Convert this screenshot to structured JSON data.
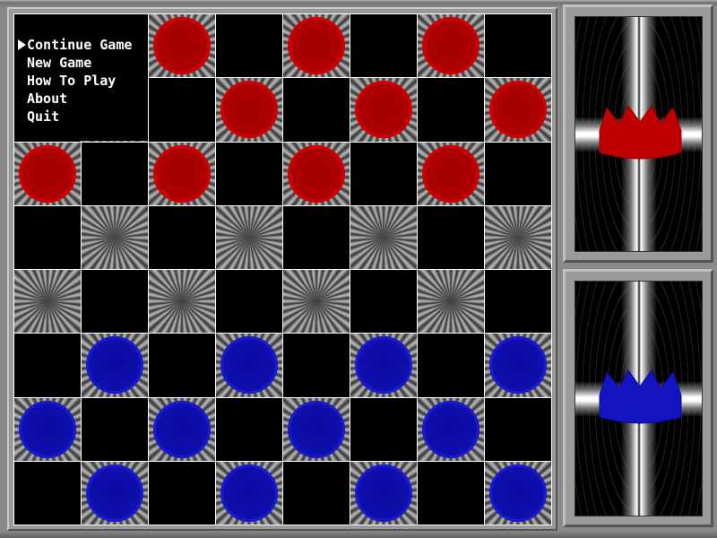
{
  "menu": {
    "selected_index": 0,
    "items": [
      {
        "label": "Continue Game"
      },
      {
        "label": "New Game"
      },
      {
        "label": "How To Play"
      },
      {
        "label": "About"
      },
      {
        "label": "Quit"
      }
    ]
  },
  "board": {
    "rows": [
      "..r.r.r.",
      "...r.r.r",
      "r.r.r.r.",
      ".-.-.-.-",
      "-.-.-.-.",
      ".b.b.b.b",
      "b.b.b.b.",
      ".b.b.b.b"
    ],
    "legend": {
      "r": "red piece",
      "b": "blue piece",
      "-": "empty light square",
      ".": "dark square"
    }
  },
  "panels": {
    "top": {
      "icon": "red-crown-icon",
      "color": "#c00000"
    },
    "bottom": {
      "icon": "blue-crown-icon",
      "color": "#1414c0"
    }
  },
  "colors": {
    "red": "#c00000",
    "blue": "#1414c0",
    "grid": "#ffffff",
    "background": "#8a8a8a"
  }
}
